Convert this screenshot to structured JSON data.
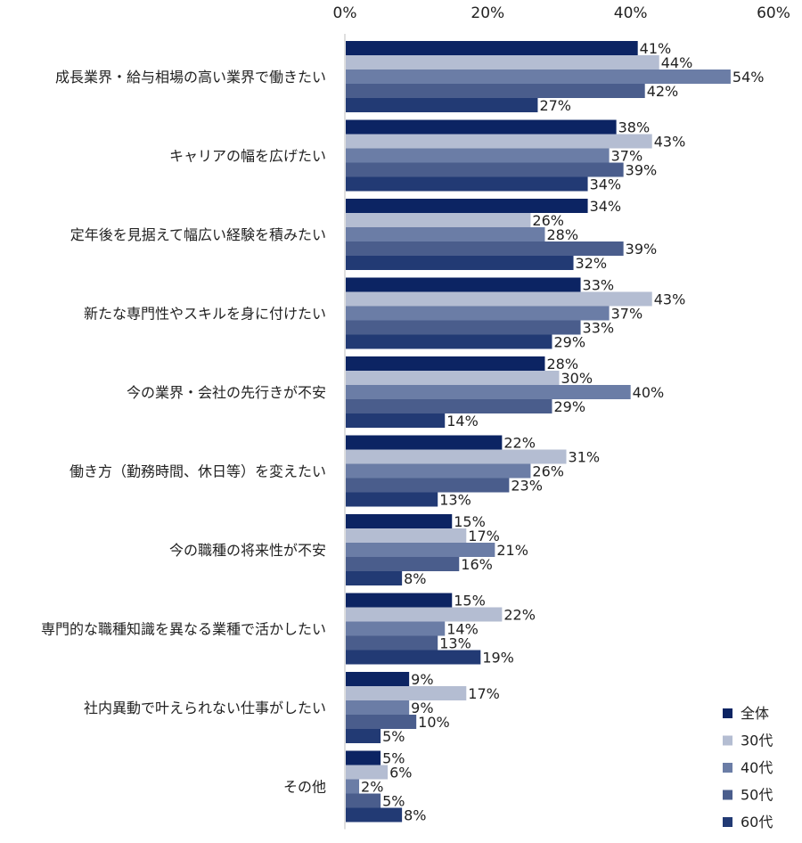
{
  "chart_data": {
    "type": "bar",
    "orientation": "horizontal",
    "xlim": [
      0,
      60
    ],
    "x_ticks": [
      "0%",
      "20%",
      "40%",
      "60%"
    ],
    "x_tick_values": [
      0,
      20,
      40,
      60
    ],
    "value_suffix": "%",
    "grid": false,
    "legend_position": "bottom-right",
    "categories": [
      "成長業界・給与相場の高い業界で働きたい",
      "キャリアの幅を広げたい",
      "定年後を見据えて幅広い経験を積みたい",
      "新たな専門性やスキルを身に付けたい",
      "今の業界・会社の先行きが不安",
      "働き方（勤務時間、休日等）を変えたい",
      "今の職種の将来性が不安",
      "専門的な職種知識を異なる業種で活かしたい",
      "社内異動で叶えられない仕事がしたい",
      "その他"
    ],
    "series": [
      {
        "name": "全体",
        "color": "#0c2463",
        "values": [
          41,
          38,
          34,
          33,
          28,
          22,
          15,
          15,
          9,
          5
        ]
      },
      {
        "name": "30代",
        "color": "#b4bdd2",
        "values": [
          44,
          43,
          26,
          43,
          30,
          31,
          17,
          22,
          17,
          6
        ]
      },
      {
        "name": "40代",
        "color": "#6b7da6",
        "values": [
          54,
          37,
          28,
          37,
          40,
          26,
          21,
          14,
          9,
          2
        ]
      },
      {
        "name": "50代",
        "color": "#4a5d8c",
        "values": [
          42,
          39,
          39,
          33,
          29,
          23,
          16,
          13,
          10,
          5
        ]
      },
      {
        "name": "60代",
        "color": "#223a74",
        "values": [
          27,
          34,
          32,
          29,
          14,
          13,
          8,
          19,
          5,
          8
        ]
      }
    ]
  }
}
